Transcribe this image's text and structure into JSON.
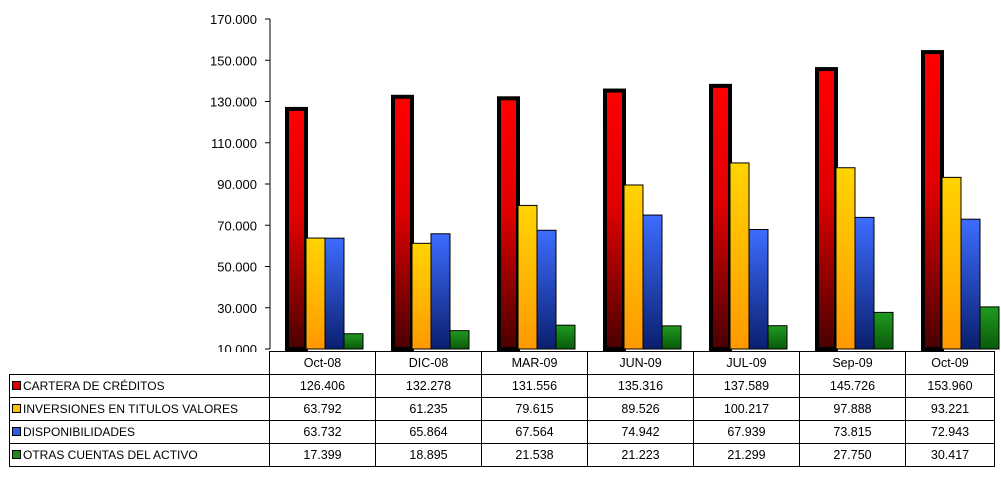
{
  "chart_data": {
    "type": "bar",
    "categories": [
      "Oct-08",
      "DIC-08",
      "MAR-09",
      "JUN-09",
      "JUL-09",
      "Sep-09",
      "Oct-09"
    ],
    "y_ticks": [
      "10.000",
      "30.000",
      "50.000",
      "70.000",
      "90.000",
      "110.000",
      "130.000",
      "150.000",
      "170.000"
    ],
    "ylim": [
      10000,
      170000
    ],
    "legend_placement": "data-table-left",
    "grid": false,
    "series": [
      {
        "name": "CARTERA DE CRÉDITOS",
        "color": "#e00000",
        "values": [
          126406,
          132278,
          131556,
          135316,
          137589,
          145726,
          153960
        ],
        "labels": [
          "126.406",
          "132.278",
          "131.556",
          "135.316",
          "137.589",
          "145.726",
          "153.960"
        ]
      },
      {
        "name": "INVERSIONES EN TITULOS VALORES",
        "color": "#ffc000",
        "values": [
          63792,
          61235,
          79615,
          89526,
          100217,
          97888,
          93221
        ],
        "labels": [
          "63.792",
          "61.235",
          "79.615",
          "89.526",
          "100.217",
          "97.888",
          "93.221"
        ]
      },
      {
        "name": "DISPONIBILIDADES",
        "color": "#2e5ce6",
        "values": [
          63732,
          65864,
          67564,
          74942,
          67939,
          73815,
          72943
        ],
        "labels": [
          "63.732",
          "65.864",
          "67.564",
          "74.942",
          "67.939",
          "73.815",
          "72.943"
        ]
      },
      {
        "name": "OTRAS CUENTAS DEL ACTIVO",
        "color": "#1a8a1a",
        "values": [
          17399,
          18895,
          21538,
          21223,
          21299,
          27750,
          30417
        ],
        "labels": [
          "17.399",
          "18.895",
          "21.538",
          "21.223",
          "21.299",
          "27.750",
          "30.417"
        ]
      }
    ]
  }
}
